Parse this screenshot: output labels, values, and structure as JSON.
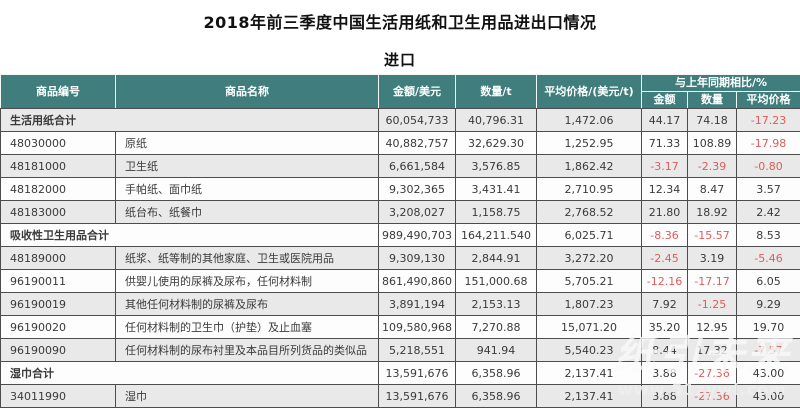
{
  "page": {
    "title": "2018年前三季度中国生活用纸和卫生用品进出口情况",
    "subtitle": "进口"
  },
  "colors": {
    "header_bg": "#3f7e7c",
    "header_text": "#ffffff",
    "stripe_bg": "#e9e9e9",
    "row_white_bg": "#fdfdfd",
    "border": "#4d4d4d",
    "negative_text": "#dd5c5c",
    "body_text": "#3a3a3a"
  },
  "table": {
    "headers": {
      "code": "商品编号",
      "name": "商品名称",
      "amount": "金额/美元",
      "quantity": "数量/t",
      "avg_price": "平均价格/(美元/t)",
      "yoy_group": "与上年同期相比/%",
      "yoy_amount": "金额",
      "yoy_quantity": "数量",
      "yoy_avg_price": "平均价格"
    },
    "rows": [
      {
        "is_total": true,
        "code": "",
        "name": "生活用纸合计",
        "amount": "60,054,733",
        "quantity": "40,796.31",
        "avg_price": "1,472.06",
        "yoy_amount": "44.17",
        "yoy_quantity": "74.18",
        "yoy_avg_price": "-17.23"
      },
      {
        "is_total": false,
        "code": "48030000",
        "name": "原纸",
        "amount": "40,882,757",
        "quantity": "32,629.30",
        "avg_price": "1,252.95",
        "yoy_amount": "71.33",
        "yoy_quantity": "108.89",
        "yoy_avg_price": "-17.98"
      },
      {
        "is_total": false,
        "code": "48181000",
        "name": "卫生纸",
        "amount": "6,661,584",
        "quantity": "3,576.85",
        "avg_price": "1,862.42",
        "yoy_amount": "-3.17",
        "yoy_quantity": "-2.39",
        "yoy_avg_price": "-0.80"
      },
      {
        "is_total": false,
        "code": "48182000",
        "name": "手帕纸、面巾纸",
        "amount": "9,302,365",
        "quantity": "3,431.41",
        "avg_price": "2,710.95",
        "yoy_amount": "12.34",
        "yoy_quantity": "8.47",
        "yoy_avg_price": "3.57"
      },
      {
        "is_total": false,
        "code": "48183000",
        "name": "纸台布、纸餐巾",
        "amount": "3,208,027",
        "quantity": "1,158.75",
        "avg_price": "2,768.52",
        "yoy_amount": "21.80",
        "yoy_quantity": "18.92",
        "yoy_avg_price": "2.42"
      },
      {
        "is_total": true,
        "code": "",
        "name": "吸收性卫生用品合计",
        "amount": "989,490,703",
        "quantity": "164,211.540",
        "avg_price": "6,025.71",
        "yoy_amount": "-8.36",
        "yoy_quantity": "-15.57",
        "yoy_avg_price": "8.53"
      },
      {
        "is_total": false,
        "code": "48189000",
        "name": "纸浆、纸等制的其他家庭、卫生或医院用品",
        "amount": "9,309,130",
        "quantity": "2,844.91",
        "avg_price": "3,272.20",
        "yoy_amount": "-2.45",
        "yoy_quantity": "3.19",
        "yoy_avg_price": "-5.46"
      },
      {
        "is_total": false,
        "code": "96190011",
        "name": "供婴儿使用的尿裤及尿布，任何材料制",
        "amount": "861,490,860",
        "quantity": "151,000.68",
        "avg_price": "5,705.21",
        "yoy_amount": "-12.16",
        "yoy_quantity": "-17.17",
        "yoy_avg_price": "6.05"
      },
      {
        "is_total": false,
        "code": "96190019",
        "name": "其他任何材料制的尿裤及尿布",
        "amount": "3,891,194",
        "quantity": "2,153.13",
        "avg_price": "1,807.23",
        "yoy_amount": "7.92",
        "yoy_quantity": "-1.25",
        "yoy_avg_price": "9.29"
      },
      {
        "is_total": false,
        "code": "96190020",
        "name": "任何材料制的卫生巾（护垫）及止血塞",
        "amount": "109,580,968",
        "quantity": "7,270.88",
        "avg_price": "15,071.20",
        "yoy_amount": "35.20",
        "yoy_quantity": "12.95",
        "yoy_avg_price": "19.70"
      },
      {
        "is_total": false,
        "code": "96190090",
        "name": "任何材料制的尿布衬里及本品目所列货品的类似品",
        "amount": "5,218,551",
        "quantity": "941.94",
        "avg_price": "5,540.23",
        "yoy_amount": "8.44",
        "yoy_quantity": "17.32",
        "yoy_avg_price": "-7.57"
      },
      {
        "is_total": true,
        "code": "",
        "name": "湿巾合计",
        "amount": "13,591,676",
        "quantity": "6,358.96",
        "avg_price": "2,137.41",
        "yoy_amount": "3.88",
        "yoy_quantity": "-27.36",
        "yoy_avg_price": "43.00"
      },
      {
        "is_total": false,
        "code": "34011990",
        "name": "湿巾",
        "amount": "13,591,676",
        "quantity": "6,358.96",
        "avg_price": "2,137.41",
        "yoy_amount": "3.88",
        "yoy_quantity": "-27.36",
        "yoy_avg_price": "43.00"
      }
    ]
  },
  "watermark": {
    "text": "纸引未来",
    "url": "www.51zywl.com"
  }
}
